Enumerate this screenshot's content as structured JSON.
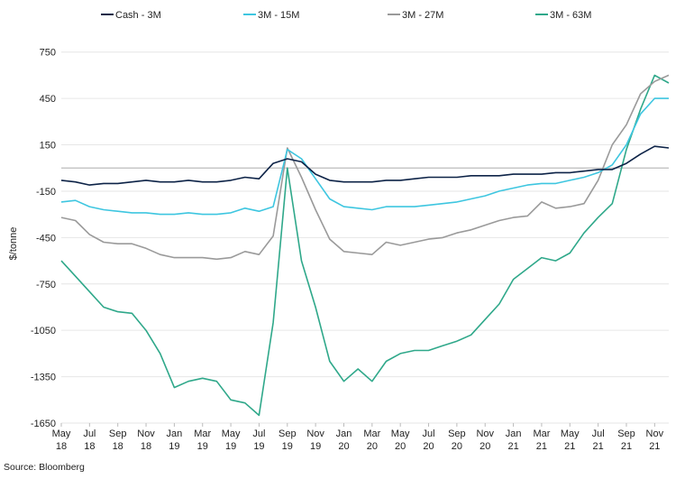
{
  "chart_data": {
    "type": "line",
    "title": "",
    "xlabel": "",
    "ylabel": "$/tonne",
    "ylim": [
      -1650,
      900
    ],
    "yticks": [
      750,
      450,
      150,
      -150,
      -450,
      -750,
      -1050,
      -1350,
      -1650
    ],
    "grid": true,
    "legend_position": "top",
    "xlim_months": [
      "2018-05",
      "2021-12"
    ],
    "x_ticks": [
      {
        "month": "May",
        "year": "18"
      },
      {
        "month": "Jul",
        "year": "18"
      },
      {
        "month": "Sep",
        "year": "18"
      },
      {
        "month": "Nov",
        "year": "18"
      },
      {
        "month": "Jan",
        "year": "19"
      },
      {
        "month": "Mar",
        "year": "19"
      },
      {
        "month": "May",
        "year": "19"
      },
      {
        "month": "Jul",
        "year": "19"
      },
      {
        "month": "Sep",
        "year": "19"
      },
      {
        "month": "Nov",
        "year": "19"
      },
      {
        "month": "Jan",
        "year": "20"
      },
      {
        "month": "Mar",
        "year": "20"
      },
      {
        "month": "May",
        "year": "20"
      },
      {
        "month": "Jul",
        "year": "20"
      },
      {
        "month": "Sep",
        "year": "20"
      },
      {
        "month": "Nov",
        "year": "20"
      },
      {
        "month": "Jan",
        "year": "21"
      },
      {
        "month": "Mar",
        "year": "21"
      },
      {
        "month": "May",
        "year": "21"
      },
      {
        "month": "Jul",
        "year": "21"
      },
      {
        "month": "Sep",
        "year": "21"
      },
      {
        "month": "Nov",
        "year": "21"
      }
    ],
    "series": [
      {
        "name": "Cash - 3M",
        "color": "#0d2347",
        "x": [
          "2018-05",
          "2018-06",
          "2018-07",
          "2018-08",
          "2018-09",
          "2018-10",
          "2018-11",
          "2018-12",
          "2019-01",
          "2019-02",
          "2019-03",
          "2019-04",
          "2019-05",
          "2019-06",
          "2019-07",
          "2019-08",
          "2019-09",
          "2019-10",
          "2019-11",
          "2019-12",
          "2020-01",
          "2020-02",
          "2020-03",
          "2020-04",
          "2020-05",
          "2020-06",
          "2020-07",
          "2020-08",
          "2020-09",
          "2020-10",
          "2020-11",
          "2020-12",
          "2021-01",
          "2021-02",
          "2021-03",
          "2021-04",
          "2021-05",
          "2021-06",
          "2021-07",
          "2021-08",
          "2021-09",
          "2021-10",
          "2021-11",
          "2021-12"
        ],
        "values": [
          -80,
          -90,
          -110,
          -100,
          -100,
          -90,
          -80,
          -90,
          -90,
          -80,
          -90,
          -90,
          -80,
          -60,
          -70,
          30,
          60,
          40,
          -40,
          -80,
          -90,
          -90,
          -90,
          -80,
          -80,
          -70,
          -60,
          -60,
          -60,
          -50,
          -50,
          -50,
          -40,
          -40,
          -40,
          -30,
          -30,
          -20,
          -10,
          -10,
          30,
          90,
          140,
          130
        ]
      },
      {
        "name": "3M - 15M",
        "color": "#3ec6e0",
        "x": [
          "2018-05",
          "2018-06",
          "2018-07",
          "2018-08",
          "2018-09",
          "2018-10",
          "2018-11",
          "2018-12",
          "2019-01",
          "2019-02",
          "2019-03",
          "2019-04",
          "2019-05",
          "2019-06",
          "2019-07",
          "2019-08",
          "2019-09",
          "2019-10",
          "2019-11",
          "2019-12",
          "2020-01",
          "2020-02",
          "2020-03",
          "2020-04",
          "2020-05",
          "2020-06",
          "2020-07",
          "2020-08",
          "2020-09",
          "2020-10",
          "2020-11",
          "2020-12",
          "2021-01",
          "2021-02",
          "2021-03",
          "2021-04",
          "2021-05",
          "2021-06",
          "2021-07",
          "2021-08",
          "2021-09",
          "2021-10",
          "2021-11",
          "2021-12"
        ],
        "values": [
          -220,
          -210,
          -250,
          -270,
          -280,
          -290,
          -290,
          -300,
          -300,
          -290,
          -300,
          -300,
          -290,
          -260,
          -280,
          -250,
          120,
          60,
          -70,
          -200,
          -250,
          -260,
          -270,
          -250,
          -250,
          -250,
          -240,
          -230,
          -220,
          -200,
          -180,
          -150,
          -130,
          -110,
          -100,
          -100,
          -80,
          -60,
          -30,
          20,
          150,
          350,
          450,
          450
        ]
      },
      {
        "name": "3M - 27M",
        "color": "#9a9a9a",
        "x": [
          "2018-05",
          "2018-06",
          "2018-07",
          "2018-08",
          "2018-09",
          "2018-10",
          "2018-11",
          "2018-12",
          "2019-01",
          "2019-02",
          "2019-03",
          "2019-04",
          "2019-05",
          "2019-06",
          "2019-07",
          "2019-08",
          "2019-09",
          "2019-10",
          "2019-11",
          "2019-12",
          "2020-01",
          "2020-02",
          "2020-03",
          "2020-04",
          "2020-05",
          "2020-06",
          "2020-07",
          "2020-08",
          "2020-09",
          "2020-10",
          "2020-11",
          "2020-12",
          "2021-01",
          "2021-02",
          "2021-03",
          "2021-04",
          "2021-05",
          "2021-06",
          "2021-07",
          "2021-08",
          "2021-09",
          "2021-10",
          "2021-11",
          "2021-12"
        ],
        "values": [
          -320,
          -340,
          -430,
          -480,
          -490,
          -490,
          -520,
          -560,
          -580,
          -580,
          -580,
          -590,
          -580,
          -540,
          -560,
          -440,
          130,
          -60,
          -270,
          -460,
          -540,
          -550,
          -560,
          -480,
          -500,
          -480,
          -460,
          -450,
          -420,
          -400,
          -370,
          -340,
          -320,
          -310,
          -220,
          -260,
          -250,
          -230,
          -80,
          150,
          280,
          480,
          560,
          600
        ]
      },
      {
        "name": "3M - 63M",
        "color": "#2fa88a",
        "x": [
          "2018-05",
          "2018-06",
          "2018-07",
          "2018-08",
          "2018-09",
          "2018-10",
          "2018-11",
          "2018-12",
          "2019-01",
          "2019-02",
          "2019-03",
          "2019-04",
          "2019-05",
          "2019-06",
          "2019-07",
          "2019-08",
          "2019-09",
          "2019-10",
          "2019-11",
          "2019-12",
          "2020-01",
          "2020-02",
          "2020-03",
          "2020-04",
          "2020-05",
          "2020-06",
          "2020-07",
          "2020-08",
          "2020-09",
          "2020-10",
          "2020-11",
          "2020-12",
          "2021-01",
          "2021-02",
          "2021-03",
          "2021-04",
          "2021-05",
          "2021-06",
          "2021-07",
          "2021-08",
          "2021-09",
          "2021-10",
          "2021-11",
          "2021-12"
        ],
        "values": [
          -600,
          -700,
          -800,
          -900,
          -930,
          -940,
          -1050,
          -1200,
          -1420,
          -1380,
          -1360,
          -1380,
          -1500,
          -1520,
          -1600,
          -1000,
          0,
          -600,
          -900,
          -1250,
          -1380,
          -1300,
          -1380,
          -1250,
          -1200,
          -1180,
          -1180,
          -1150,
          -1120,
          -1080,
          -980,
          -880,
          -720,
          -650,
          -580,
          -600,
          -550,
          -420,
          -320,
          -230,
          120,
          380,
          600,
          550
        ]
      }
    ]
  },
  "source": "Source: Bloomberg"
}
